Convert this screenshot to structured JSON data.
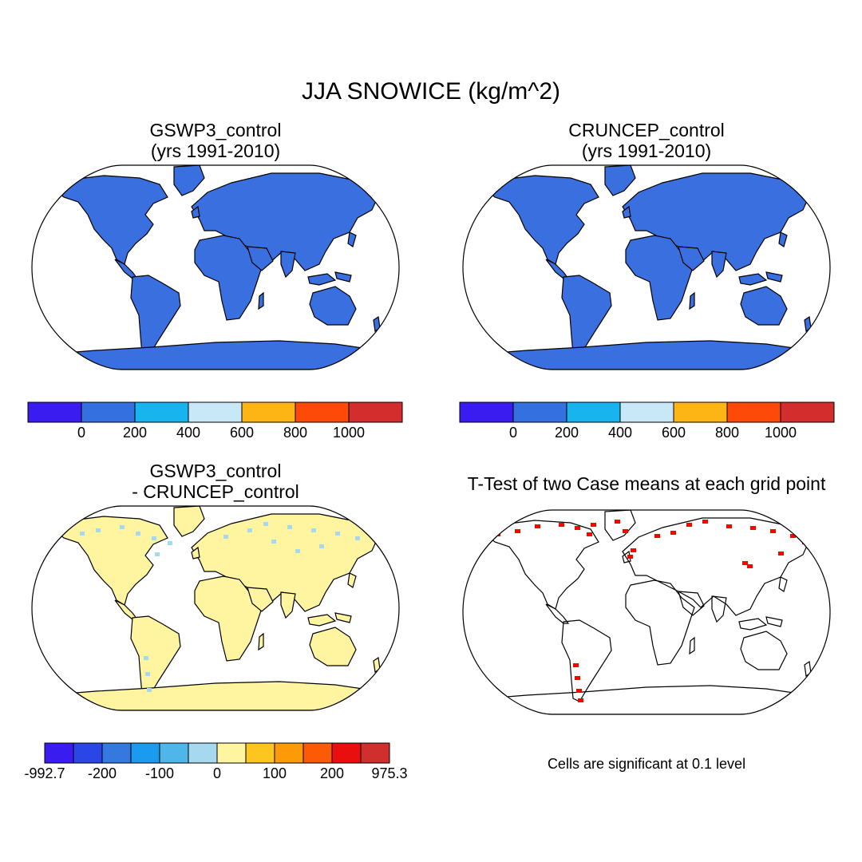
{
  "title": "JJA SNOWICE (kg/m^2)",
  "panels": [
    {
      "title_line1": "GSWP3_control",
      "title_line2": "(yrs 1991-2010)"
    },
    {
      "title_line1": "CRUNCEP_control",
      "title_line2": "(yrs 1991-2010)"
    },
    {
      "title_line1": "GSWP3_control",
      "title_line2": "- CRUNCEP_control"
    },
    {
      "title_line1": "T-Test of two Case means at each grid point"
    }
  ],
  "colorbar_main": {
    "colors": [
      "#3a1bf0",
      "#3570e0",
      "#17b4ee",
      "#c8e8f7",
      "#fdb515",
      "#fd4a08",
      "#d42d2d"
    ],
    "labels": [
      "0",
      "200",
      "400",
      "600",
      "800",
      "1000"
    ]
  },
  "colorbar_diff": {
    "colors": [
      "#3a1bf0",
      "#2a46e6",
      "#3579e0",
      "#1a9bf0",
      "#4fb6ea",
      "#a6d8ef",
      "#fff5a0",
      "#fdc51f",
      "#fd9a08",
      "#fd5a06",
      "#ea0f0f",
      "#d12e2e"
    ],
    "labels": [
      "-992.7",
      "-200",
      "-100",
      "0",
      "100",
      "200",
      "975.3"
    ]
  },
  "map_colors": {
    "land_control": "#3a6fdf",
    "greenland": "#fd4a08",
    "antarctica": "#d42d2d",
    "diff_land": "#fff5a0",
    "diff_ice": "#a6d8ef",
    "significant": "#ff0000"
  },
  "significance_note": "Cells are significant at 0.1 level"
}
